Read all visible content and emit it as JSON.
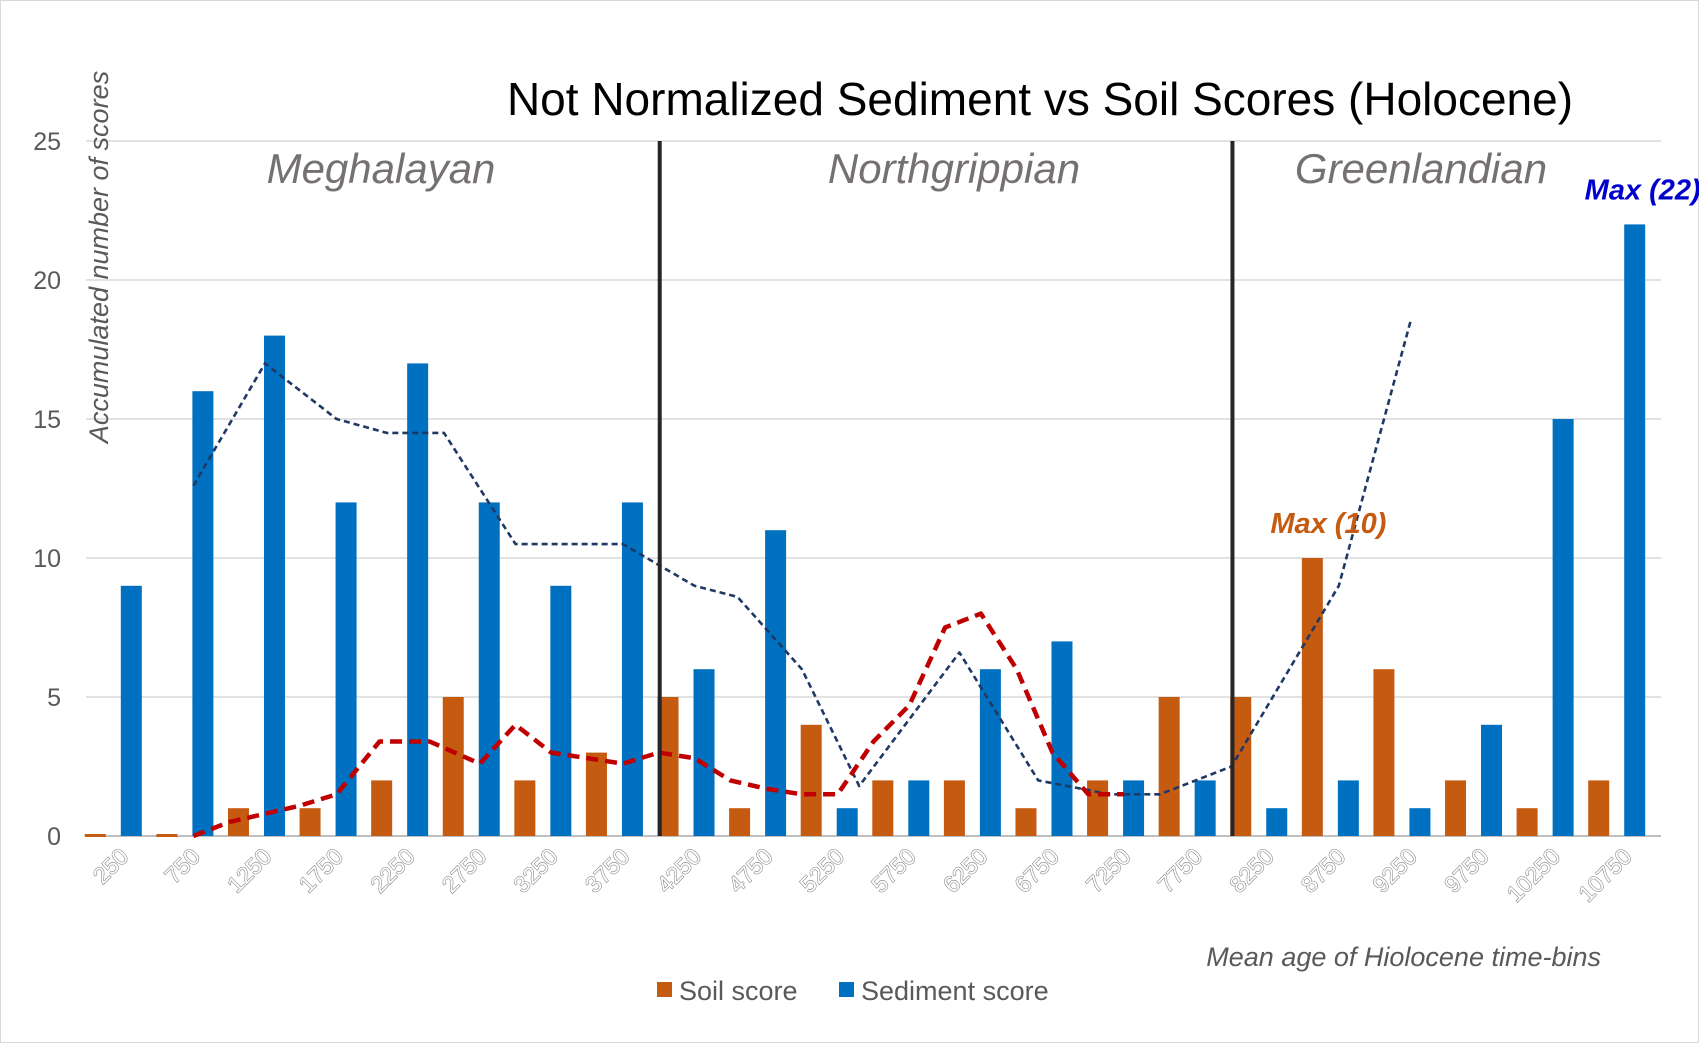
{
  "chart_data": {
    "type": "bar",
    "title": "Not Normalized Sediment vs Soil Scores (Holocene)",
    "xlabel": "Mean age of Hiolocene time-bins",
    "ylabel": "Accumulated number of scores",
    "ylim": [
      0,
      25
    ],
    "yticks": [
      "0",
      "5",
      "10",
      "15",
      "20",
      "25"
    ],
    "grid": true,
    "categories": [
      "250",
      "750",
      "1250",
      "1750",
      "2250",
      "2750",
      "3250",
      "3750",
      "4250",
      "4750",
      "5250",
      "5750",
      "6250",
      "6750",
      "7250",
      "7750",
      "8250",
      "8750",
      "9250",
      "9750",
      "10250",
      "10750"
    ],
    "series": [
      {
        "name": "Soil score",
        "color": "#c55a11",
        "values": [
          0,
          0,
          1,
          1,
          2,
          5,
          2,
          3,
          5,
          1,
          4,
          2,
          2,
          1,
          2,
          5,
          5,
          10,
          6,
          2,
          1,
          2
        ]
      },
      {
        "name": "Sediment score",
        "color": "#0070c0",
        "values": [
          9,
          16,
          18,
          12,
          17,
          12,
          9,
          12,
          6,
          11,
          1,
          2,
          6,
          7,
          2,
          2,
          1,
          2,
          1,
          4,
          15,
          22
        ]
      }
    ],
    "trendlines": [
      {
        "series": "Sediment score",
        "style": "dashed",
        "color": "#1f3864",
        "points": [
          [
            1,
            12.6
          ],
          [
            2,
            17
          ],
          [
            3,
            15
          ],
          [
            3.7,
            14.5
          ],
          [
            4.5,
            14.5
          ],
          [
            5.5,
            10.5
          ],
          [
            7,
            10.5
          ],
          [
            8,
            9
          ],
          [
            8.6,
            8.6
          ],
          [
            9.5,
            6
          ],
          [
            10.3,
            1.8
          ],
          [
            11.7,
            6.6
          ],
          [
            12.8,
            2
          ],
          [
            13.8,
            1.5
          ],
          [
            14.5,
            1.5
          ],
          [
            15.5,
            2.5
          ],
          [
            17,
            9
          ],
          [
            18,
            18.5
          ]
        ]
      },
      {
        "series": "Soil score",
        "style": "dashed",
        "color": "#c00000",
        "points": [
          [
            1,
            0
          ],
          [
            1.5,
            0.5
          ],
          [
            2,
            0.8
          ],
          [
            2.5,
            1.1
          ],
          [
            3,
            1.5
          ],
          [
            3.6,
            3.4
          ],
          [
            4.3,
            3.4
          ],
          [
            5,
            2.6
          ],
          [
            5.5,
            4
          ],
          [
            6,
            3
          ],
          [
            7,
            2.6
          ],
          [
            7.5,
            3
          ],
          [
            8,
            2.8
          ],
          [
            8.5,
            2
          ],
          [
            9,
            1.7
          ],
          [
            9.5,
            1.5
          ],
          [
            10,
            1.5
          ],
          [
            10.5,
            3.4
          ],
          [
            11,
            4.7
          ],
          [
            11.5,
            7.5
          ],
          [
            12,
            8
          ],
          [
            12.5,
            6
          ],
          [
            13,
            3
          ],
          [
            13.5,
            1.5
          ],
          [
            14,
            1.5
          ]
        ]
      }
    ],
    "epochs": [
      {
        "name": "Meghalayan"
      },
      {
        "name": "Northgrippian"
      },
      {
        "name": "Greenlandian"
      }
    ],
    "annotations": [
      {
        "text": "Max (10)",
        "series": "Soil score",
        "category": "8750",
        "color": "#c55a11"
      },
      {
        "text": "Max (22)",
        "series": "Sediment score",
        "category": "10750",
        "color": "#0000cc"
      }
    ],
    "legend": {
      "placement": "bottom-center"
    }
  }
}
